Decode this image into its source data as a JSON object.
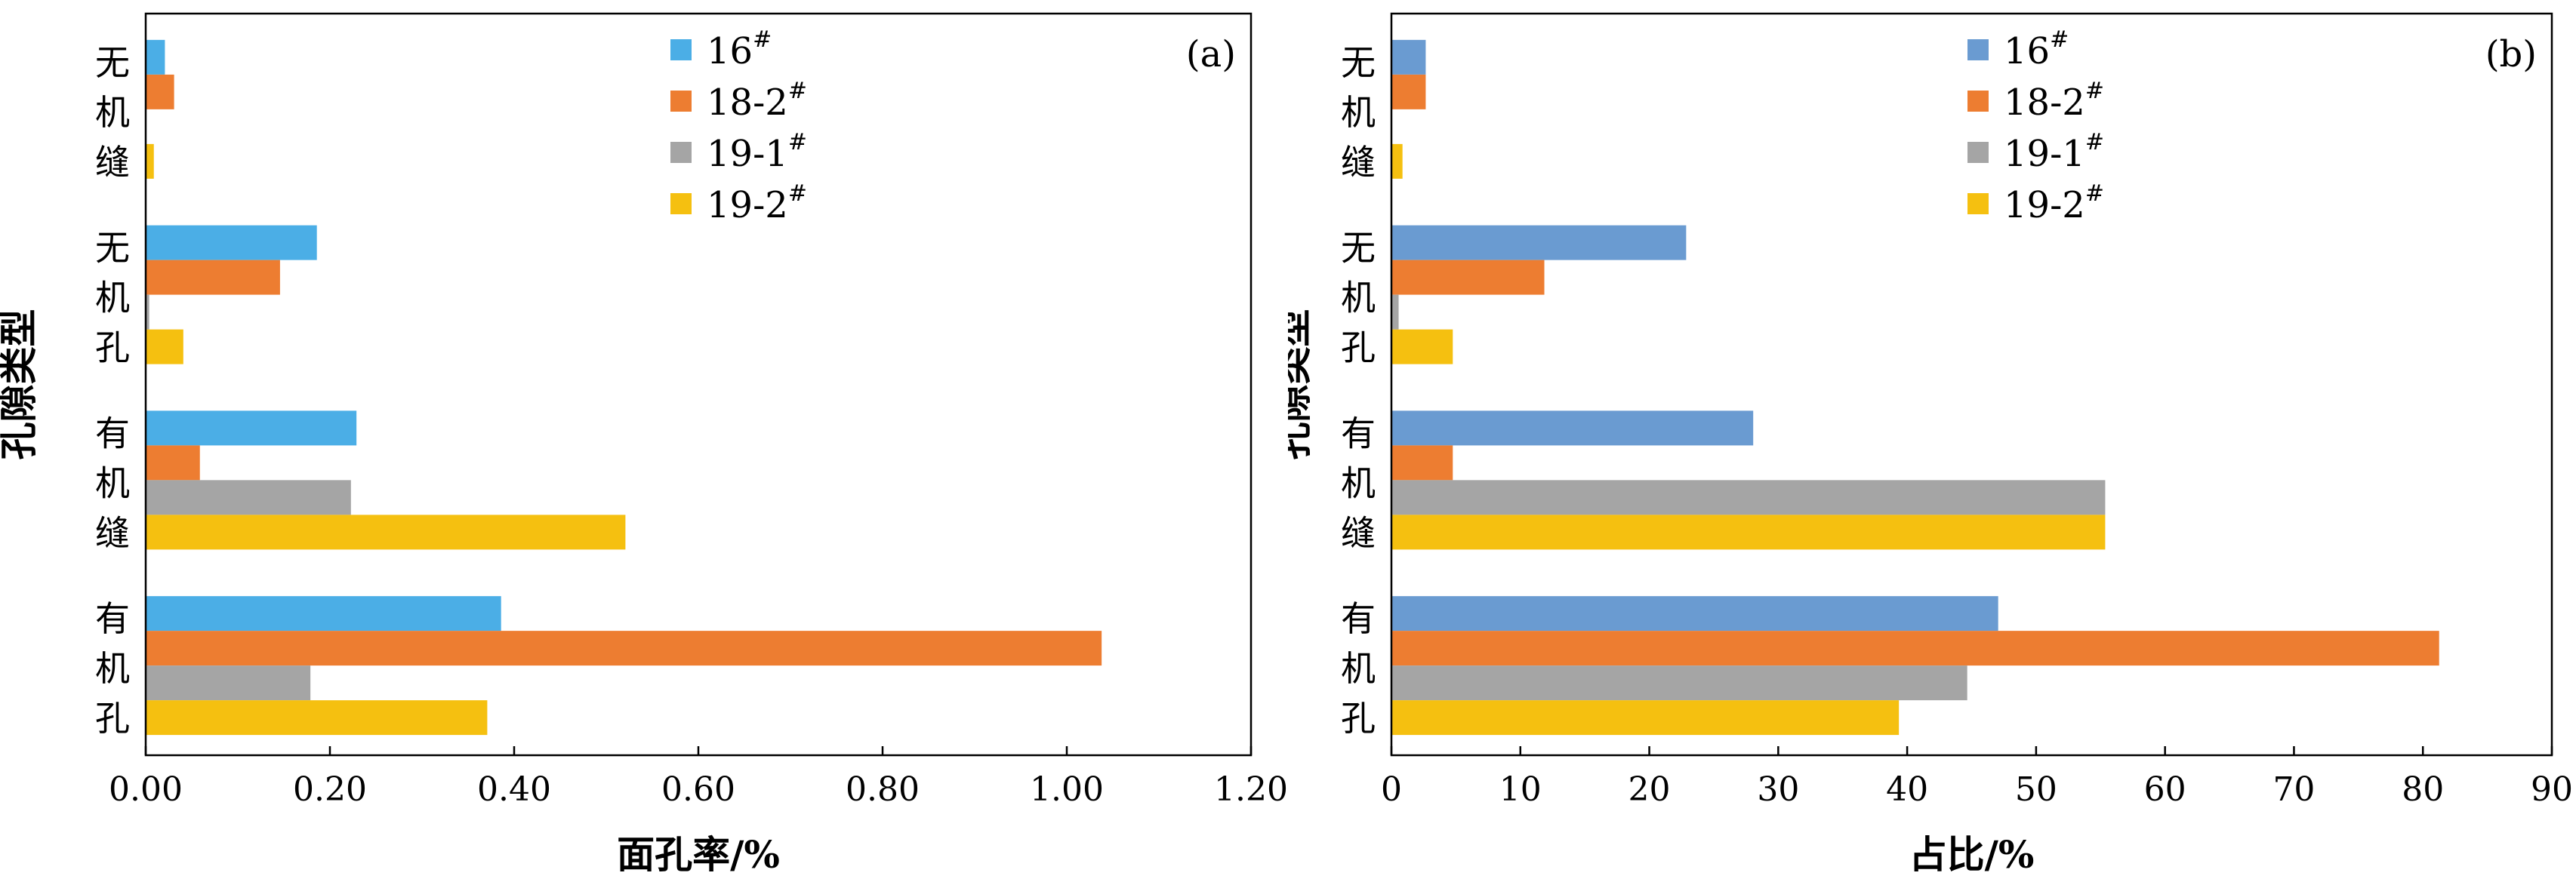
{
  "chart_data": [
    {
      "type": "bar",
      "orientation": "horizontal",
      "panel_label": "(a)",
      "xlabel": "面孔率/%",
      "ylabel": "孔隙类型",
      "xlim": [
        0,
        1.2
      ],
      "xticks": [
        "0.00",
        "0.20",
        "0.40",
        "0.60",
        "0.80",
        "1.00",
        "1.20"
      ],
      "xtick_values": [
        0,
        0.2,
        0.4,
        0.6,
        0.8,
        1.0,
        1.2
      ],
      "categories": [
        [
          "无",
          "机",
          "缝"
        ],
        [
          "无",
          "机",
          "孔"
        ],
        [
          "有",
          "机",
          "缝"
        ],
        [
          "有",
          "机",
          "孔"
        ]
      ],
      "legend_position": "top-right",
      "series": [
        {
          "name": "16",
          "sup": "#",
          "color": "#4BAEE6",
          "values": [
            0.02,
            0.185,
            0.228,
            0.385
          ]
        },
        {
          "name": "18-2",
          "sup": "#",
          "color": "#ED7D31",
          "values": [
            0.03,
            0.145,
            0.058,
            1.037
          ]
        },
        {
          "name": "19-1",
          "sup": "#",
          "color": "#A5A5A5",
          "values": [
            0.0,
            0.003,
            0.222,
            0.178
          ]
        },
        {
          "name": "19-2",
          "sup": "#",
          "color": "#F5C010",
          "values": [
            0.008,
            0.04,
            0.52,
            0.37
          ]
        }
      ]
    },
    {
      "type": "bar",
      "orientation": "horizontal",
      "panel_label": "(b)",
      "xlabel": "占比/%",
      "ylabel": "孔隙类型",
      "xlim": [
        0,
        90
      ],
      "xticks": [
        "0",
        "10",
        "20",
        "30",
        "40",
        "50",
        "60",
        "70",
        "80",
        "90"
      ],
      "xtick_values": [
        0,
        10,
        20,
        30,
        40,
        50,
        60,
        70,
        80,
        90
      ],
      "categories": [
        [
          "无",
          "机",
          "缝"
        ],
        [
          "无",
          "机",
          "孔"
        ],
        [
          "有",
          "机",
          "缝"
        ],
        [
          "有",
          "机",
          "孔"
        ]
      ],
      "legend_position": "top-right",
      "series": [
        {
          "name": "16",
          "sup": "#",
          "color": "#6A9BD1",
          "values": [
            2.6,
            22.8,
            28.0,
            47.0
          ]
        },
        {
          "name": "18-2",
          "sup": "#",
          "color": "#ED7D31",
          "values": [
            2.6,
            11.8,
            4.7,
            81.2
          ]
        },
        {
          "name": "19-1",
          "sup": "#",
          "color": "#A5A5A5",
          "values": [
            0.0,
            0.5,
            55.3,
            44.6
          ]
        },
        {
          "name": "19-2",
          "sup": "#",
          "color": "#F5C010",
          "values": [
            0.8,
            4.7,
            55.3,
            39.3
          ]
        }
      ]
    }
  ]
}
